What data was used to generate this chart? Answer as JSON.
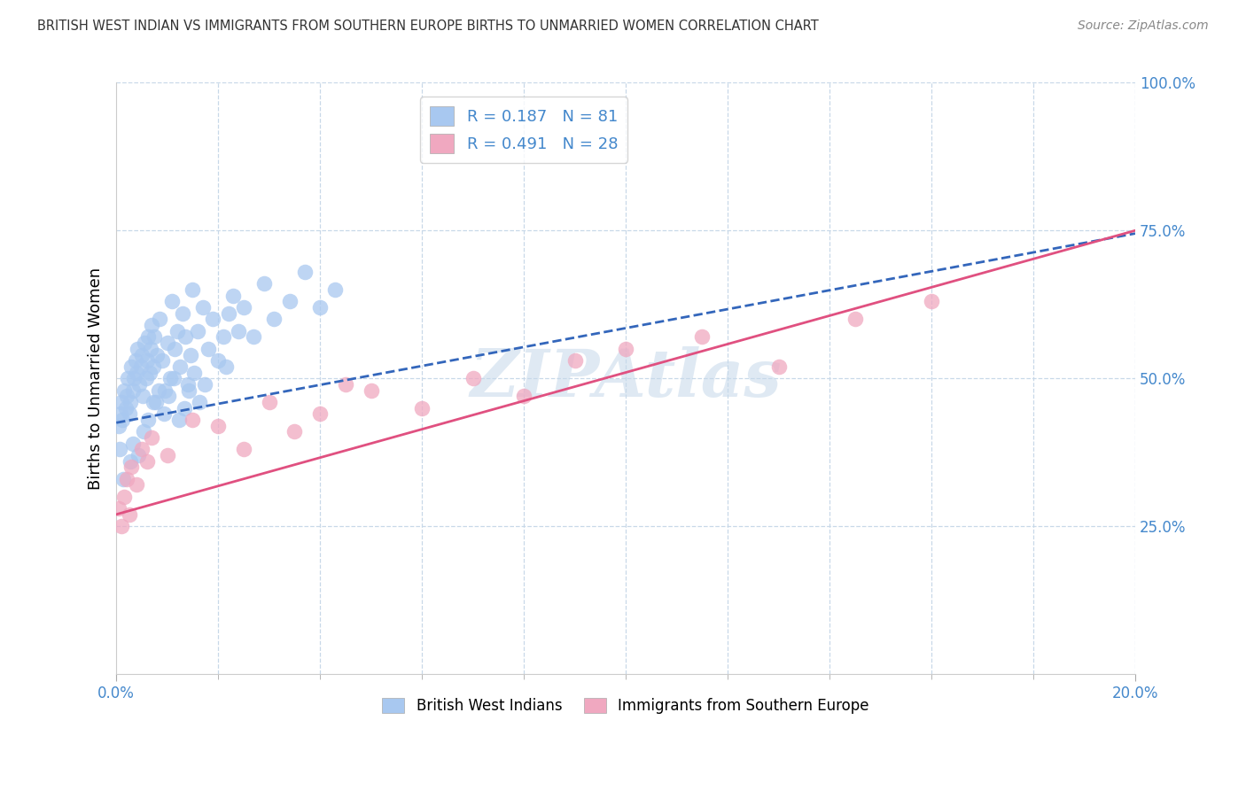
{
  "title": "BRITISH WEST INDIAN VS IMMIGRANTS FROM SOUTHERN EUROPE BIRTHS TO UNMARRIED WOMEN CORRELATION CHART",
  "source": "Source: ZipAtlas.com",
  "ylabel": "Births to Unmarried Women",
  "legend_blue_r": "R = 0.187",
  "legend_blue_n": "N = 81",
  "legend_pink_r": "R = 0.491",
  "legend_pink_n": "N = 28",
  "watermark": "ZIPAtlas",
  "blue_color": "#a8c8f0",
  "pink_color": "#f0a8c0",
  "blue_line_color": "#3366bb",
  "pink_line_color": "#e05080",
  "title_color": "#333333",
  "axis_label_color": "#4488cc",
  "legend_r_color": "#4488cc",
  "grid_color": "#c8d8e8",
  "blue_scatter_x": [
    0.05,
    0.08,
    0.1,
    0.12,
    0.15,
    0.18,
    0.2,
    0.22,
    0.25,
    0.28,
    0.3,
    0.32,
    0.35,
    0.38,
    0.4,
    0.42,
    0.45,
    0.48,
    0.5,
    0.52,
    0.55,
    0.58,
    0.6,
    0.62,
    0.65,
    0.68,
    0.7,
    0.72,
    0.75,
    0.78,
    0.8,
    0.85,
    0.9,
    0.95,
    1.0,
    1.05,
    1.1,
    1.15,
    1.2,
    1.25,
    1.3,
    1.35,
    1.4,
    1.45,
    1.5,
    1.6,
    1.7,
    1.8,
    1.9,
    2.0,
    2.1,
    2.2,
    2.3,
    2.4,
    2.5,
    2.7,
    2.9,
    3.1,
    3.4,
    3.7,
    4.0,
    4.3,
    0.07,
    0.13,
    0.27,
    0.33,
    0.43,
    0.53,
    0.63,
    0.73,
    0.83,
    0.93,
    1.03,
    1.13,
    1.23,
    1.33,
    1.43,
    1.53,
    1.63,
    1.73,
    2.15
  ],
  "blue_scatter_y": [
    42,
    44,
    46,
    43,
    48,
    45,
    47,
    50,
    44,
    46,
    52,
    48,
    50,
    53,
    51,
    55,
    49,
    52,
    54,
    47,
    56,
    50,
    53,
    57,
    51,
    55,
    59,
    52,
    57,
    46,
    54,
    60,
    53,
    48,
    56,
    50,
    63,
    55,
    58,
    52,
    61,
    57,
    49,
    54,
    65,
    58,
    62,
    55,
    60,
    53,
    57,
    61,
    64,
    58,
    62,
    57,
    66,
    60,
    63,
    68,
    62,
    65,
    38,
    33,
    36,
    39,
    37,
    41,
    43,
    46,
    48,
    44,
    47,
    50,
    43,
    45,
    48,
    51,
    46,
    49,
    52
  ],
  "pink_scatter_x": [
    0.05,
    0.1,
    0.15,
    0.2,
    0.25,
    0.3,
    0.4,
    0.5,
    0.7,
    1.0,
    1.5,
    2.0,
    2.5,
    3.0,
    4.0,
    5.0,
    6.0,
    7.0,
    8.0,
    9.0,
    10.0,
    11.5,
    13.0,
    14.5,
    16.0,
    3.5,
    4.5,
    0.6
  ],
  "pink_scatter_y": [
    28,
    25,
    30,
    33,
    27,
    35,
    32,
    38,
    40,
    37,
    43,
    42,
    38,
    46,
    44,
    48,
    45,
    50,
    47,
    53,
    55,
    57,
    52,
    60,
    63,
    41,
    49,
    36
  ],
  "blue_line_y_intercept": 42.5,
  "blue_line_slope": 1.6,
  "pink_line_y_intercept": 27.0,
  "pink_line_slope": 2.4,
  "xmin": 0.0,
  "xmax": 20.0,
  "ymin": 0.0,
  "ymax": 100.0
}
